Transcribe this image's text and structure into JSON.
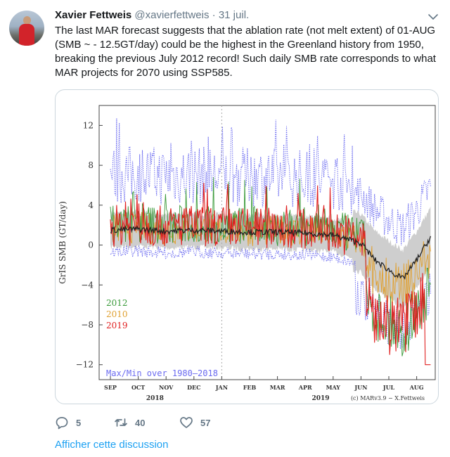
{
  "tweet": {
    "author_name": "Xavier Fettweis",
    "author_handle": "@xavierfettweis",
    "separator": "·",
    "date": "31 juil.",
    "text": "The last MAR forecast suggests that the ablation rate (not melt extent) of 01-AUG (SMB ~ - 12.5GT/day) could be the highest in the Greenland history from 1950, breaking the previous July 2012 record! Such daily SMB rate corresponds to what MAR projects for 2070 using SSP585.",
    "actions": {
      "reply_count": "5",
      "retweet_count": "40",
      "like_count": "57"
    },
    "thread_link": "Afficher cette discussion"
  },
  "chart_data": {
    "type": "line",
    "ylabel": "GrIS SMB (GT/day)",
    "ylim": [
      -13.5,
      14
    ],
    "yticks": [
      12,
      8,
      4,
      0,
      -4,
      -8,
      -12
    ],
    "ytick_labels": [
      "12",
      "8",
      "4",
      "0",
      "−4",
      "−8",
      "−12"
    ],
    "xtick_labels": [
      "SEP",
      "OCT",
      "NOV",
      "DEC",
      "JAN",
      "FEB",
      "MAR",
      "APR",
      "MAY",
      "JUN",
      "JUL",
      "AUG"
    ],
    "x_year_labels": [
      "2018",
      "2019"
    ],
    "legend": [
      {
        "label": "2012",
        "color": "#3a9a3a"
      },
      {
        "label": "2010",
        "color": "#e0a030"
      },
      {
        "label": "2019",
        "color": "#e02020"
      }
    ],
    "range_label": "Max/Min over 1980–2018",
    "credit": "(c) MARv3.9 − X.Fettweis",
    "colors": {
      "mean": "#222222",
      "band": "#bdbdbd",
      "max_min": "#6b6bf0",
      "y2012": "#3a9a3a",
      "y2010": "#e0a030",
      "y2019": "#e02020"
    },
    "mean_curve": {
      "months": [
        0,
        1,
        2,
        3,
        4,
        5,
        6,
        7,
        8,
        9,
        9.5,
        10,
        10.5,
        11,
        11.5
      ],
      "values": [
        1.5,
        1.6,
        1.4,
        1.5,
        1.4,
        1.3,
        1.3,
        1.2,
        1.0,
        0.2,
        -1.5,
        -2.5,
        -3.4,
        -1.5,
        0.8
      ]
    }
  }
}
